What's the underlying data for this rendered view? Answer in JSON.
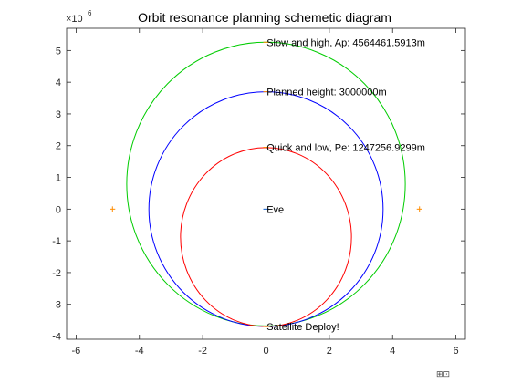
{
  "chart_data": {
    "type": "line",
    "title": "Orbit resonance planning schemetic diagram",
    "xlabel": "",
    "ylabel": "",
    "xlim": [
      -6.3,
      6.3
    ],
    "ylim": [
      -4.1,
      5.7
    ],
    "x_ticks": [
      -6,
      -4,
      -2,
      0,
      2,
      4,
      6
    ],
    "y_ticks": [
      -4,
      -3,
      -2,
      -1,
      0,
      1,
      2,
      3,
      4,
      5
    ],
    "x_tick_labels": [
      "-6",
      "-4",
      "-2",
      "0",
      "2",
      "4",
      "6"
    ],
    "y_tick_labels": [
      "-4",
      "-3",
      "-2",
      "-1",
      "0",
      "1",
      "2",
      "3",
      "4",
      "5"
    ],
    "axis_exponent": {
      "base": "×10",
      "power": "6"
    },
    "grid": false,
    "series": [
      {
        "name": "",
        "color": "#00cc00",
        "shape": "ellipse",
        "center": [
          0,
          0.79
        ],
        "radius_x": 4.4,
        "radius_y": 4.47
      },
      {
        "name": "",
        "color": "#0000ff",
        "shape": "circle",
        "center": [
          0,
          0
        ],
        "radius_x": 3.7,
        "radius_y": 3.7
      },
      {
        "name": "",
        "color": "#ff0000",
        "shape": "ellipse",
        "center": [
          0,
          -0.88
        ],
        "radius_x": 2.7,
        "radius_y": 2.82
      }
    ],
    "points": [
      {
        "x": 0,
        "y": 5.26,
        "color": "#ff8c00"
      },
      {
        "x": 0,
        "y": 3.7,
        "color": "#ff8c00"
      },
      {
        "x": 0,
        "y": 1.95,
        "color": "#ff8c00"
      },
      {
        "x": 0,
        "y": -3.7,
        "color": "#ff8c00"
      },
      {
        "x": 0,
        "y": 0,
        "color": "#0055cc"
      },
      {
        "x": -4.85,
        "y": 0,
        "color": "#ff8c00"
      },
      {
        "x": 4.85,
        "y": 0,
        "color": "#ff8c00"
      }
    ],
    "annotations": [
      {
        "text": "Slow and high, Ap: 4564461.5913m",
        "x": 0.02,
        "y": 5.26
      },
      {
        "text": "Planned height: 3000000m",
        "x": 0.02,
        "y": 3.7
      },
      {
        "text": "Quick and low, Pe: 1247256.9299m",
        "x": 0.02,
        "y": 1.95
      },
      {
        "text": "Eve",
        "x": 0.02,
        "y": 0
      },
      {
        "text": "Satellite Deploy!",
        "x": 0.02,
        "y": -3.7
      }
    ],
    "colors": {
      "axes": "#262626",
      "background": "#ffffff"
    }
  }
}
